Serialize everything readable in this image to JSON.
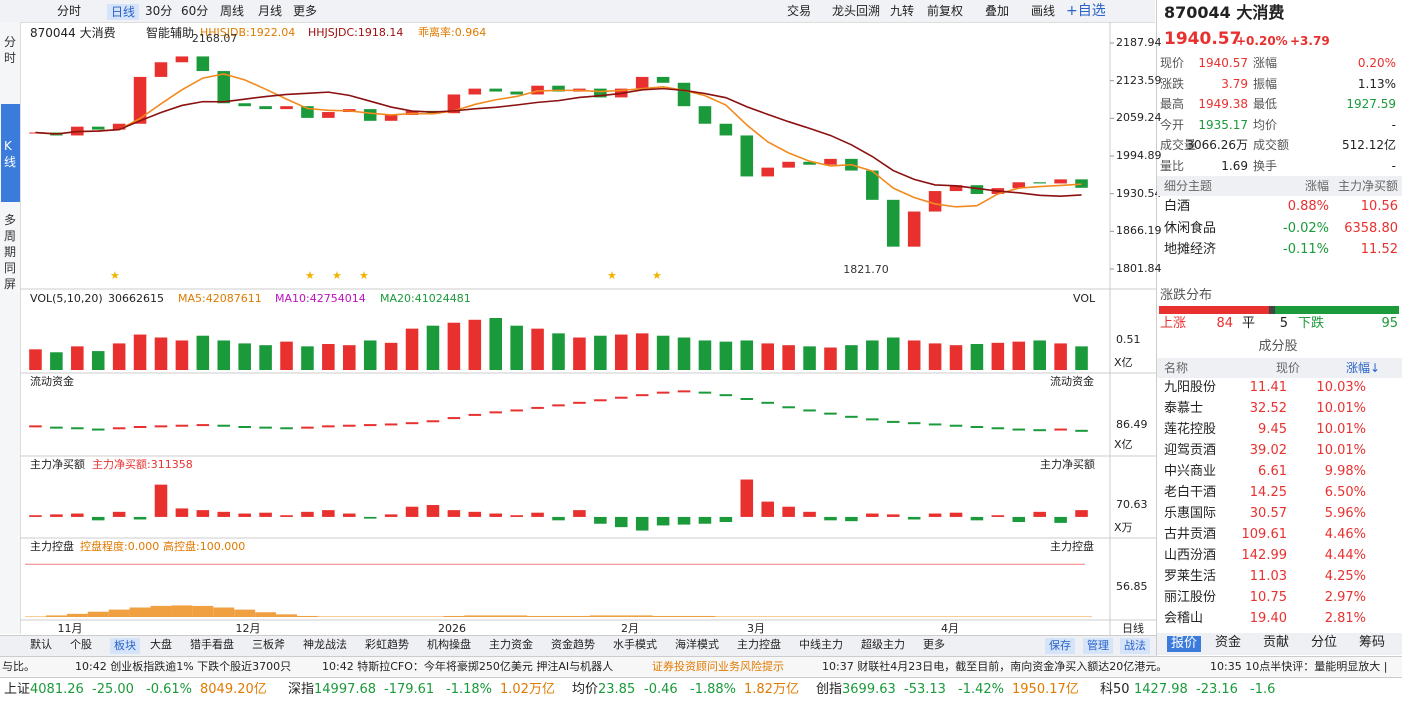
{
  "toolbar": {
    "periods": [
      "分时",
      "日线",
      "30分",
      "60分",
      "周线",
      "月线",
      "更多"
    ],
    "tools": [
      "交易",
      "龙头回溯",
      "九转",
      "前复权",
      "叠加",
      "画线",
      "+自选"
    ]
  },
  "left_nav": [
    "分时",
    "K线",
    "多周期同屏"
  ],
  "chart_data": {
    "type": "candlestick",
    "title": "870044 大消费",
    "assist": "智能辅助",
    "indicators": [
      "HHJSJDB:1922.04",
      "HHJSJDC:1918.14",
      "乖离率:0.964"
    ],
    "ylim": [
      1801.84,
      2187.94
    ],
    "yticks": [
      2187.94,
      2123.59,
      2059.24,
      1994.89,
      1930.54,
      1866.19,
      1801.84
    ],
    "high_label": "2168.07",
    "low_label": "1821.70",
    "categories": [
      "11月",
      "12月",
      "2026",
      "2月",
      "3月",
      "4月"
    ],
    "closes": [
      2035,
      2030,
      2045,
      2040,
      2050,
      2130,
      2155,
      2165,
      2140,
      2085,
      2080,
      2075,
      2080,
      2060,
      2070,
      2075,
      2055,
      2065,
      2072,
      2068,
      2100,
      2110,
      2105,
      2100,
      2115,
      2105,
      2110,
      2095,
      2110,
      2130,
      2120,
      2080,
      2050,
      2030,
      1960,
      1975,
      1985,
      1980,
      1990,
      1970,
      1920,
      1840,
      1900,
      1935,
      1945,
      1930,
      1940,
      1950,
      1948,
      1955,
      1940.57
    ],
    "period_label": "日线"
  },
  "vol": {
    "title": "VOL(5,10,20)",
    "texts": [
      "30662615",
      "MA5:42087611",
      "MA10:42754014",
      "MA20:41024481"
    ],
    "name": "VOL",
    "unit": "X亿",
    "ylim": [
      0,
      1.1
    ],
    "yticks": [
      0.51
    ],
    "values": [
      0.35,
      0.3,
      0.4,
      0.32,
      0.45,
      0.6,
      0.55,
      0.5,
      0.58,
      0.5,
      0.45,
      0.42,
      0.48,
      0.4,
      0.44,
      0.42,
      0.5,
      0.46,
      0.7,
      0.75,
      0.8,
      0.85,
      0.88,
      0.75,
      0.7,
      0.62,
      0.55,
      0.58,
      0.6,
      0.62,
      0.58,
      0.55,
      0.5,
      0.48,
      0.5,
      0.45,
      0.42,
      0.4,
      0.38,
      0.42,
      0.5,
      0.55,
      0.5,
      0.45,
      0.42,
      0.44,
      0.46,
      0.48,
      0.5,
      0.45,
      0.4
    ]
  },
  "flow": {
    "title": "流动资金",
    "unit": "X亿",
    "ylim": [
      40,
      150
    ],
    "yticks": [
      86.49
    ],
    "values": [
      85,
      83,
      82,
      80,
      82,
      84,
      85,
      86,
      87,
      86,
      84,
      83,
      82,
      83,
      85,
      86,
      87,
      88,
      90,
      93,
      98,
      103,
      107,
      110,
      114,
      118,
      122,
      126,
      130,
      134,
      138,
      140,
      138,
      134,
      128,
      122,
      115,
      110,
      105,
      100,
      96,
      92,
      90,
      88,
      86,
      84,
      82,
      80,
      79,
      80,
      78
    ]
  },
  "netbuy": {
    "title": "主力净买额",
    "text": "主力净买额:311358",
    "unit": "X万",
    "ylim": [
      -118,
      276
    ],
    "yticks": [
      70.63
    ],
    "values": [
      10,
      15,
      20,
      -20,
      30,
      -15,
      190,
      50,
      40,
      30,
      20,
      25,
      10,
      30,
      40,
      20,
      -10,
      15,
      60,
      70,
      40,
      30,
      20,
      10,
      25,
      -20,
      40,
      -40,
      -60,
      -80,
      -50,
      -45,
      -40,
      -30,
      220,
      90,
      60,
      30,
      -20,
      -25,
      20,
      15,
      -15,
      20,
      25,
      -20,
      10,
      -30,
      30,
      -35,
      40
    ]
  },
  "control": {
    "title": "主力控盘",
    "texts": [
      "控盘程度:0.000",
      "高控盘:100.000"
    ],
    "ylim": [
      0,
      146
    ],
    "yticks": [
      56.85
    ],
    "high_line": 100,
    "values": [
      1,
      3,
      6,
      10,
      14,
      18,
      21,
      22,
      21,
      18,
      14,
      9,
      5,
      2,
      1,
      1,
      1,
      1,
      1,
      1,
      2,
      3,
      3,
      3,
      2,
      2,
      2,
      3,
      3,
      3,
      2,
      2,
      2,
      1,
      1,
      1,
      1,
      1,
      1,
      1,
      1,
      1,
      1,
      1,
      1,
      1,
      1,
      1,
      1,
      1,
      1
    ]
  },
  "quote": {
    "code": "870044 大消费",
    "price": "1940.57",
    "change_pct": "+0.20%",
    "change": "+3.79",
    "rows": [
      [
        "现价",
        "1940.57",
        "涨幅",
        "0.20%"
      ],
      [
        "涨跌",
        "3.79",
        "振幅",
        "1.13%"
      ],
      [
        "最高",
        "1949.38",
        "最低",
        "1927.59"
      ],
      [
        "今开",
        "1935.17",
        "均价",
        "-"
      ],
      [
        "成交量",
        "3066.26万",
        "成交额",
        "512.12亿"
      ],
      [
        "量比",
        "1.69",
        "换手",
        "-"
      ]
    ]
  },
  "sectors": {
    "header": [
      "细分主题",
      "涨幅",
      "主力净买额"
    ],
    "rows": [
      [
        "白酒",
        "0.88%",
        "10.56"
      ],
      [
        "休闲食品",
        "-0.02%",
        "6358.80"
      ],
      [
        "地摊经济",
        "-0.11%",
        "11.52"
      ]
    ]
  },
  "distribution": {
    "title": "涨跌分布",
    "labels": [
      "上涨",
      "平",
      "下跌"
    ],
    "values": [
      84,
      5,
      95
    ]
  },
  "components": {
    "title": "成分股",
    "header": [
      "名称",
      "现价",
      "涨幅↓"
    ],
    "rows": [
      [
        "九阳股份",
        "11.41",
        "10.03%"
      ],
      [
        "泰慕士",
        "32.52",
        "10.01%"
      ],
      [
        "莲花控股",
        "9.45",
        "10.01%"
      ],
      [
        "迎驾贡酒",
        "39.02",
        "10.01%"
      ],
      [
        "中兴商业",
        "6.61",
        "9.98%"
      ],
      [
        "老白干酒",
        "14.25",
        "6.50%"
      ],
      [
        "乐惠国际",
        "30.57",
        "5.96%"
      ],
      [
        "古井贡酒",
        "109.61",
        "4.46%"
      ],
      [
        "山西汾酒",
        "142.99",
        "4.44%"
      ],
      [
        "罗莱生活",
        "11.03",
        "4.25%"
      ],
      [
        "丽江股份",
        "10.75",
        "2.97%"
      ],
      [
        "会稽山",
        "19.40",
        "2.81%"
      ]
    ]
  },
  "right_tabs": [
    "报价",
    "资金",
    "贡献",
    "分位",
    "筹码"
  ],
  "bottom_tabs": [
    "默认",
    "个股",
    "板块",
    "大盘",
    "猎手看盘",
    "三板斧",
    "神龙战法",
    "彩虹趋势",
    "机构操盘",
    "主力资金",
    "资金趋势",
    "水手模式",
    "海洋模式",
    "主力控盘",
    "中线主力",
    "超级主力",
    "更多"
  ],
  "bottom_actions": [
    "保存",
    "管理",
    "战法"
  ],
  "news": [
    "与比。",
    "10:42 创业板指跌逾1% 下跌个股近3700只",
    "10:42 特斯拉CFO：今年将豪掷250亿美元 押注AI与机器人",
    "证券投资顾问业务风险提示",
    "10:37 财联社4月23日电，截至目前，南向资金净买入额达20亿港元。",
    "10:35 10点半快评：量能明显放大 |"
  ],
  "indices": [
    [
      "上证",
      "4081.26",
      "-25.00",
      "-0.61%",
      "8049.20亿"
    ],
    [
      "深指",
      "14997.68",
      "-179.61",
      "-1.18%",
      "1.02万亿"
    ],
    [
      "均价",
      "23.85",
      "-0.46",
      "-1.88%",
      "1.82万亿"
    ],
    [
      "创指",
      "3699.63",
      "-53.13",
      "-1.42%",
      "1950.17亿"
    ],
    [
      "科50",
      "1427.98",
      "-23.16",
      "-1.6"
    ]
  ]
}
